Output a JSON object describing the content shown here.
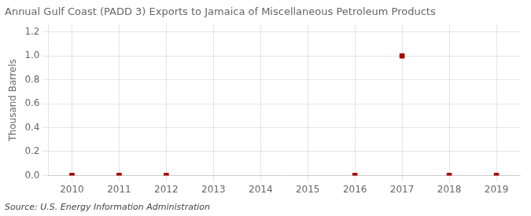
{
  "chart_data": {
    "type": "scatter",
    "title": "Annual Gulf Coast (PADD 3) Exports to Jamaica of Miscellaneous Petroleum Products",
    "ylabel": "Thousand Barrels",
    "source": "Source: U.S. Energy Information Administration",
    "x": [
      2010,
      2011,
      2012,
      2016,
      2017,
      2018,
      2019
    ],
    "values": [
      0.0,
      0.0,
      0.0,
      0.0,
      1.0,
      0.0,
      0.0
    ],
    "color": "#aa0000",
    "marker": "square",
    "xlim": [
      2009.5,
      2019.5
    ],
    "xticks": [
      2010,
      2011,
      2012,
      2013,
      2014,
      2015,
      2016,
      2017,
      2018,
      2019
    ],
    "ylim": [
      0.0,
      1.26
    ],
    "yticks": [
      {
        "value": 0.0,
        "label": "0.0"
      },
      0.2,
      0.4,
      0.6,
      0.8,
      {
        "value": 1.0,
        "label": "1.0"
      },
      1.2
    ],
    "grid": true
  }
}
